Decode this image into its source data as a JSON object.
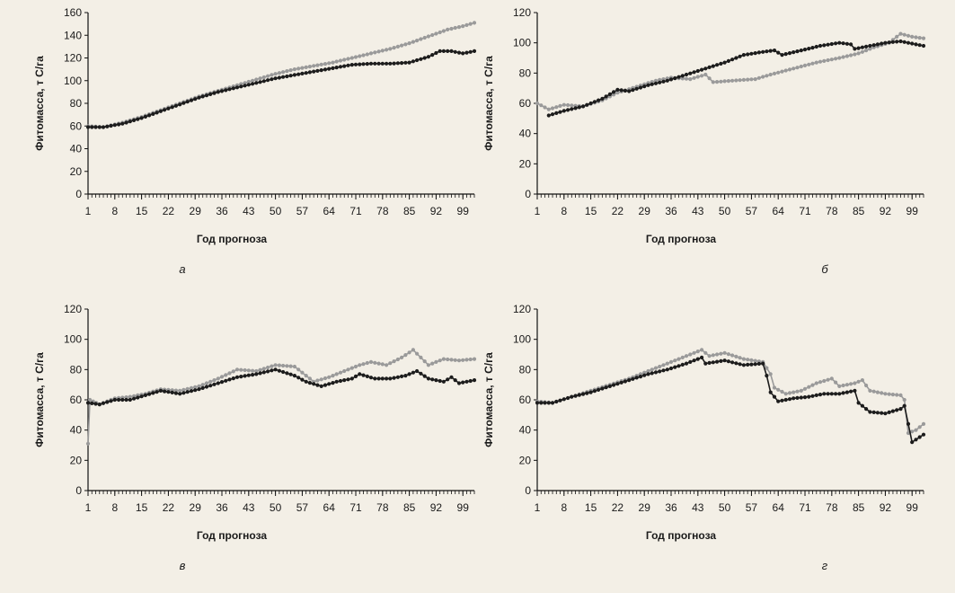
{
  "colors": {
    "background": "#f3efe6",
    "series_black": "#1c1c1c",
    "series_grey": "#9a9a9a",
    "axis": "#111111"
  },
  "chart_data": [
    {
      "type": "line",
      "panel_label": "а",
      "xlabel": "Год прогноза",
      "ylabel": "Фитомасса, т С/га",
      "xlim": [
        1,
        102
      ],
      "ylim": [
        0,
        160
      ],
      "xticks": [
        1,
        8,
        15,
        22,
        29,
        36,
        43,
        50,
        57,
        64,
        71,
        78,
        85,
        92,
        99
      ],
      "yticks": [
        0,
        20,
        40,
        60,
        80,
        100,
        120,
        140,
        160
      ],
      "grid": false,
      "series": [
        {
          "color": "black",
          "points": [
            [
              1,
              59
            ],
            [
              5,
              59
            ],
            [
              10,
              62
            ],
            [
              15,
              67
            ],
            [
              20,
              73
            ],
            [
              25,
              79
            ],
            [
              30,
              85
            ],
            [
              35,
              90
            ],
            [
              40,
              94
            ],
            [
              45,
              98
            ],
            [
              50,
              102
            ],
            [
              55,
              105
            ],
            [
              60,
              108
            ],
            [
              65,
              111
            ],
            [
              70,
              114
            ],
            [
              75,
              115
            ],
            [
              80,
              115
            ],
            [
              85,
              116
            ],
            [
              90,
              121
            ],
            [
              93,
              126
            ],
            [
              96,
              126
            ],
            [
              99,
              124
            ],
            [
              102,
              126
            ]
          ]
        },
        {
          "color": "grey",
          "points": [
            [
              1,
              60
            ],
            [
              5,
              59
            ],
            [
              10,
              63
            ],
            [
              15,
              68
            ],
            [
              20,
              74
            ],
            [
              25,
              80
            ],
            [
              30,
              86
            ],
            [
              35,
              91
            ],
            [
              40,
              96
            ],
            [
              45,
              101
            ],
            [
              50,
              106
            ],
            [
              55,
              110
            ],
            [
              60,
              113
            ],
            [
              65,
              116
            ],
            [
              70,
              120
            ],
            [
              75,
              124
            ],
            [
              80,
              128
            ],
            [
              85,
              133
            ],
            [
              90,
              139
            ],
            [
              95,
              145
            ],
            [
              99,
              148
            ],
            [
              102,
              151
            ]
          ]
        }
      ]
    },
    {
      "type": "line",
      "panel_label": "б",
      "xlabel": "Год прогноза",
      "ylabel": "Фитомасса, т С/га",
      "xlim": [
        1,
        102
      ],
      "ylim": [
        0,
        120
      ],
      "xticks": [
        1,
        8,
        15,
        22,
        29,
        36,
        43,
        50,
        57,
        64,
        71,
        78,
        85,
        92,
        99
      ],
      "yticks": [
        0,
        20,
        40,
        60,
        80,
        100,
        120
      ],
      "grid": false,
      "series": [
        {
          "color": "black",
          "points": [
            [
              4,
              52
            ],
            [
              8,
              55
            ],
            [
              13,
              58
            ],
            [
              18,
              63
            ],
            [
              22,
              69
            ],
            [
              25,
              68
            ],
            [
              30,
              72
            ],
            [
              35,
              75
            ],
            [
              40,
              79
            ],
            [
              45,
              83
            ],
            [
              50,
              87
            ],
            [
              55,
              92
            ],
            [
              60,
              94
            ],
            [
              63,
              95
            ],
            [
              65,
              92
            ],
            [
              70,
              95
            ],
            [
              75,
              98
            ],
            [
              80,
              100
            ],
            [
              83,
              99
            ],
            [
              84,
              96
            ],
            [
              88,
              98
            ],
            [
              92,
              100
            ],
            [
              96,
              101
            ],
            [
              100,
              99
            ],
            [
              102,
              98
            ]
          ]
        },
        {
          "color": "grey",
          "points": [
            [
              1,
              60
            ],
            [
              4,
              56
            ],
            [
              8,
              59
            ],
            [
              13,
              58
            ],
            [
              18,
              62
            ],
            [
              22,
              67
            ],
            [
              27,
              71
            ],
            [
              32,
              75
            ],
            [
              36,
              77
            ],
            [
              41,
              76
            ],
            [
              45,
              79
            ],
            [
              47,
              74
            ],
            [
              52,
              75
            ],
            [
              58,
              76
            ],
            [
              62,
              79
            ],
            [
              68,
              83
            ],
            [
              74,
              87
            ],
            [
              80,
              90
            ],
            [
              85,
              93
            ],
            [
              89,
              97
            ],
            [
              93,
              100
            ],
            [
              96,
              106
            ],
            [
              99,
              104
            ],
            [
              102,
              103
            ]
          ]
        }
      ]
    },
    {
      "type": "line",
      "panel_label": "в",
      "xlabel": "Год прогноза",
      "ylabel": "Фитомасса, т С/га",
      "xlim": [
        1,
        102
      ],
      "ylim": [
        0,
        120
      ],
      "xticks": [
        1,
        8,
        15,
        22,
        29,
        36,
        43,
        50,
        57,
        64,
        71,
        78,
        85,
        92,
        99
      ],
      "yticks": [
        0,
        20,
        40,
        60,
        80,
        100,
        120
      ],
      "grid": false,
      "series": [
        {
          "color": "black",
          "points": [
            [
              1,
              58
            ],
            [
              4,
              57
            ],
            [
              8,
              60
            ],
            [
              12,
              60
            ],
            [
              16,
              63
            ],
            [
              20,
              66
            ],
            [
              25,
              64
            ],
            [
              30,
              67
            ],
            [
              35,
              71
            ],
            [
              40,
              75
            ],
            [
              45,
              77
            ],
            [
              50,
              80
            ],
            [
              55,
              76
            ],
            [
              58,
              72
            ],
            [
              62,
              69
            ],
            [
              66,
              72
            ],
            [
              70,
              74
            ],
            [
              72,
              77
            ],
            [
              76,
              74
            ],
            [
              80,
              74
            ],
            [
              84,
              76
            ],
            [
              87,
              79
            ],
            [
              90,
              74
            ],
            [
              94,
              72
            ],
            [
              96,
              75
            ],
            [
              98,
              71
            ],
            [
              102,
              73
            ]
          ]
        },
        {
          "color": "grey",
          "points": [
            [
              1,
              31
            ],
            [
              1.5,
              60
            ],
            [
              4,
              57
            ],
            [
              8,
              61
            ],
            [
              12,
              62
            ],
            [
              16,
              64
            ],
            [
              20,
              67
            ],
            [
              25,
              66
            ],
            [
              30,
              69
            ],
            [
              35,
              74
            ],
            [
              40,
              80
            ],
            [
              45,
              79
            ],
            [
              50,
              83
            ],
            [
              55,
              82
            ],
            [
              60,
              72
            ],
            [
              64,
              75
            ],
            [
              68,
              79
            ],
            [
              72,
              83
            ],
            [
              75,
              85
            ],
            [
              79,
              83
            ],
            [
              83,
              88
            ],
            [
              86,
              93
            ],
            [
              90,
              83
            ],
            [
              94,
              87
            ],
            [
              98,
              86
            ],
            [
              102,
              87
            ]
          ]
        }
      ]
    },
    {
      "type": "line",
      "panel_label": "г",
      "xlabel": "Год прогноза",
      "ylabel": "Фитомасса, т С/га",
      "xlim": [
        1,
        102
      ],
      "ylim": [
        0,
        120
      ],
      "xticks": [
        1,
        8,
        15,
        22,
        29,
        36,
        43,
        50,
        57,
        64,
        71,
        78,
        85,
        92,
        99
      ],
      "yticks": [
        0,
        20,
        40,
        60,
        80,
        100,
        120
      ],
      "grid": false,
      "series": [
        {
          "color": "black",
          "points": [
            [
              1,
              58
            ],
            [
              5,
              58
            ],
            [
              10,
              62
            ],
            [
              15,
              65
            ],
            [
              20,
              69
            ],
            [
              25,
              73
            ],
            [
              30,
              77
            ],
            [
              35,
              80
            ],
            [
              40,
              84
            ],
            [
              44,
              88
            ],
            [
              45,
              84
            ],
            [
              50,
              86
            ],
            [
              55,
              83
            ],
            [
              60,
              84
            ],
            [
              61,
              76
            ],
            [
              62,
              65
            ],
            [
              64,
              59
            ],
            [
              68,
              61
            ],
            [
              72,
              62
            ],
            [
              76,
              64
            ],
            [
              80,
              64
            ],
            [
              84,
              66
            ],
            [
              85,
              58
            ],
            [
              88,
              52
            ],
            [
              92,
              51
            ],
            [
              96,
              54
            ],
            [
              97,
              56
            ],
            [
              98,
              44
            ],
            [
              99,
              32
            ],
            [
              102,
              37
            ]
          ]
        },
        {
          "color": "grey",
          "points": [
            [
              1,
              59
            ],
            [
              5,
              58
            ],
            [
              10,
              62
            ],
            [
              15,
              66
            ],
            [
              20,
              70
            ],
            [
              25,
              74
            ],
            [
              30,
              79
            ],
            [
              35,
              84
            ],
            [
              40,
              89
            ],
            [
              44,
              93
            ],
            [
              46,
              89
            ],
            [
              50,
              91
            ],
            [
              55,
              87
            ],
            [
              60,
              85
            ],
            [
              62,
              77
            ],
            [
              63,
              68
            ],
            [
              66,
              64
            ],
            [
              70,
              66
            ],
            [
              74,
              71
            ],
            [
              78,
              74
            ],
            [
              80,
              69
            ],
            [
              84,
              71
            ],
            [
              86,
              73
            ],
            [
              88,
              66
            ],
            [
              92,
              64
            ],
            [
              96,
              63
            ],
            [
              97,
              60
            ],
            [
              98,
              38
            ],
            [
              100,
              40
            ],
            [
              102,
              44
            ]
          ]
        }
      ]
    }
  ]
}
